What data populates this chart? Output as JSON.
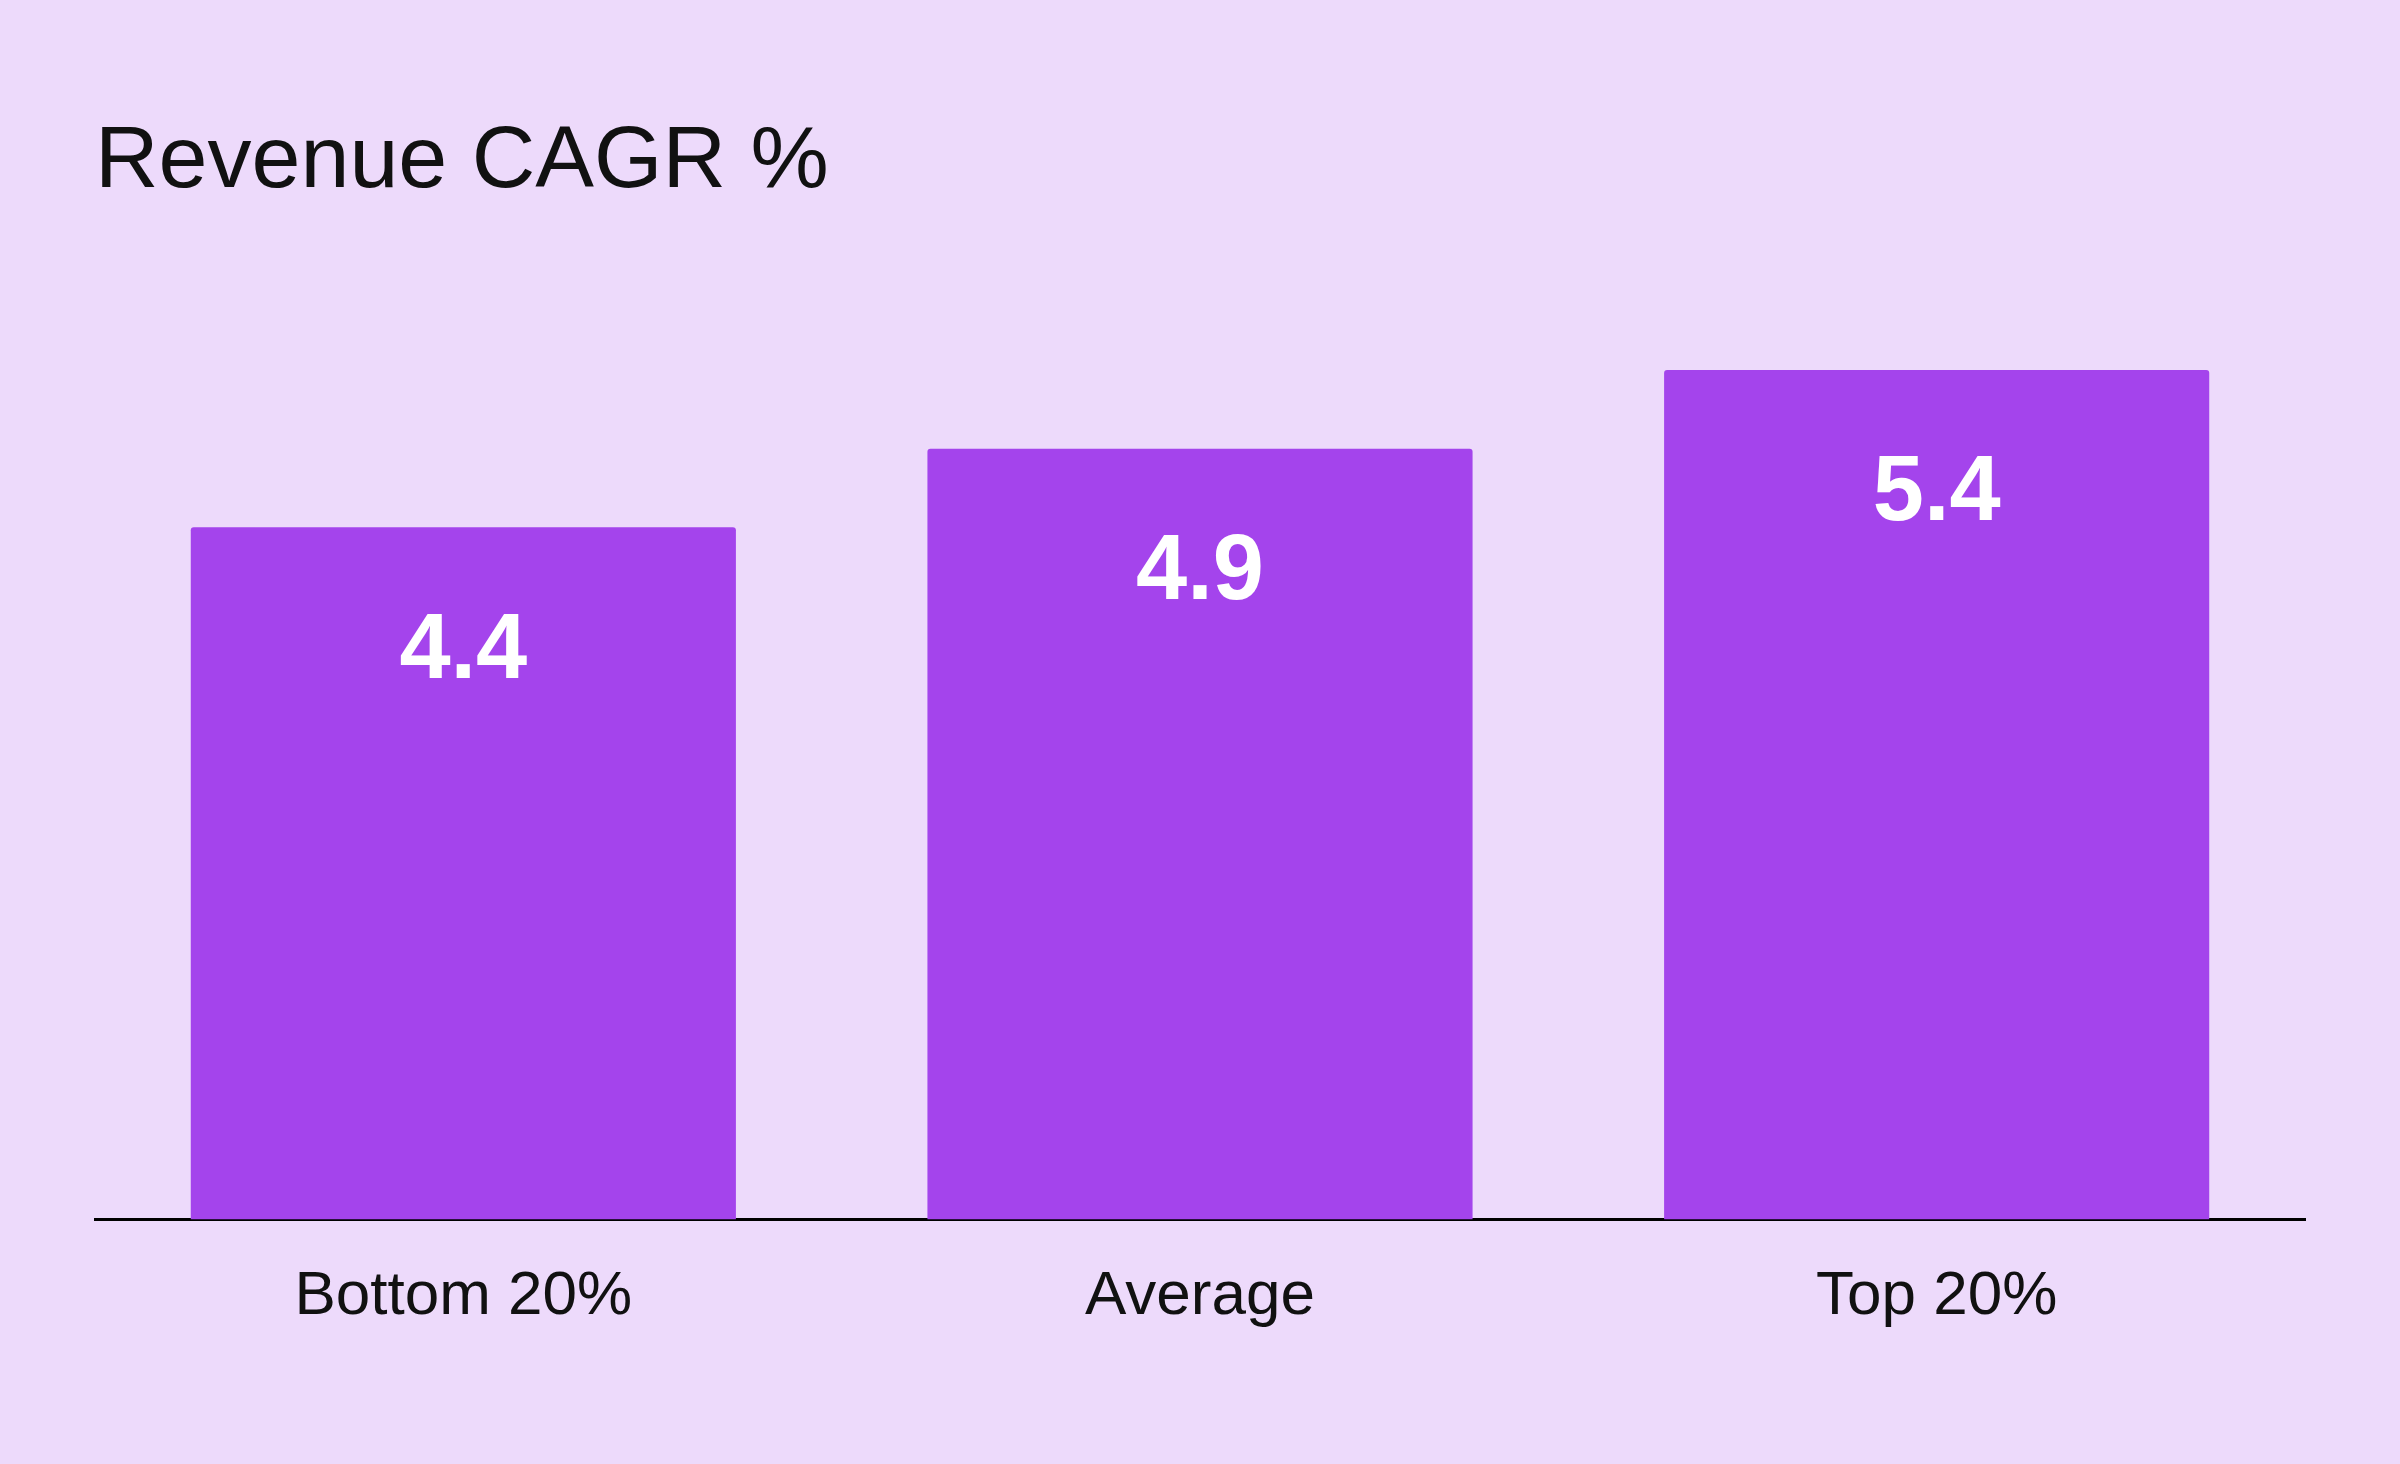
{
  "chart_data": {
    "type": "bar",
    "title": "Revenue CAGR %",
    "categories": [
      "Bottom 20%",
      "Average",
      "Top 20%"
    ],
    "values": [
      4.4,
      4.9,
      5.4
    ],
    "color": "#a444ec",
    "data_labels": true,
    "tick_labels": "x"
  }
}
